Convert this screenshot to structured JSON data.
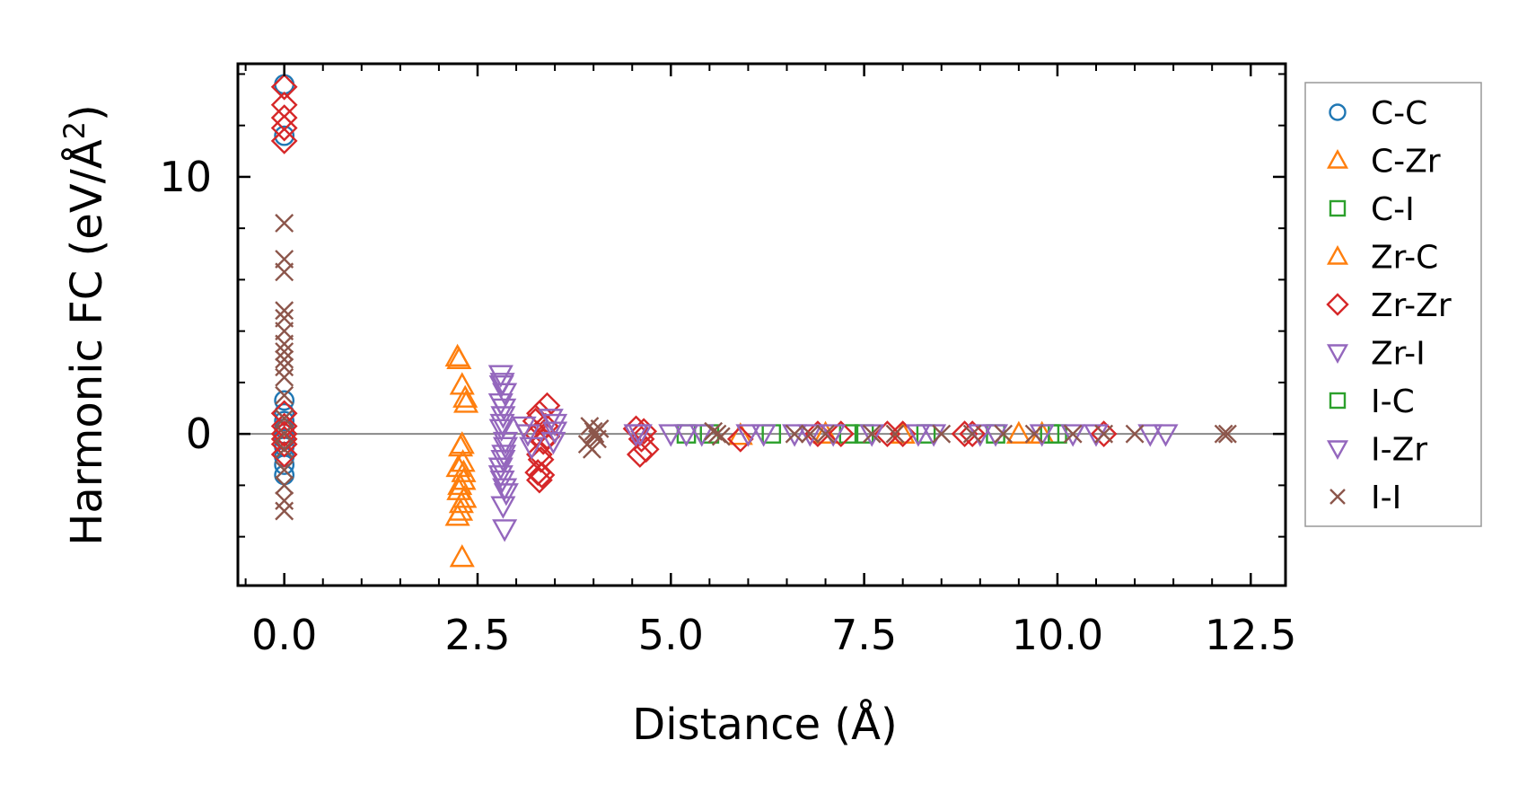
{
  "chart_data": {
    "type": "scatter",
    "title": "",
    "xlabel": "Distance (Å)",
    "ylabel": "Harmonic FC (eV/Å²)",
    "ylabel_main": "Harmonic FC (eV/Å",
    "ylabel_sup": "2",
    "ylabel_tail": ")",
    "xlim": [
      -0.6,
      12.95
    ],
    "ylim": [
      -5.9,
      14.4
    ],
    "xticks": [
      0.0,
      2.5,
      5.0,
      7.5,
      10.0,
      12.5
    ],
    "xtick_labels": [
      "0.0",
      "2.5",
      "5.0",
      "7.5",
      "10.0",
      "12.5"
    ],
    "yticks": [
      0,
      10
    ],
    "ytick_labels": [
      "0",
      "10"
    ],
    "x_minor_step": 0.5,
    "y_minor_step": 2,
    "grid": false,
    "zero_line": true,
    "legend_position": "outside-right",
    "series": [
      {
        "name": "C-C",
        "marker": "circle",
        "color": "#1f77b4",
        "x": [
          0,
          0,
          0,
          0,
          0,
          0,
          0,
          0,
          0,
          0,
          0,
          0
        ],
        "y": [
          13.6,
          11.6,
          1.3,
          0.5,
          0.2,
          0.0,
          -0.2,
          -0.5,
          -1.2,
          -1.6,
          0.8,
          -0.9
        ]
      },
      {
        "name": "C-Zr",
        "marker": "triangle-up",
        "color": "#ff7f0e",
        "x": [
          2.24,
          2.3,
          2.34,
          2.3,
          2.25,
          2.32,
          2.26,
          2.33,
          2.28,
          2.31,
          5.9,
          7.0,
          8.0,
          9.5,
          9.8
        ],
        "y": [
          3.0,
          1.9,
          1.4,
          -0.4,
          -1.3,
          -1.8,
          -2.2,
          -2.5,
          -3.0,
          -1.1,
          -0.05,
          0.0,
          0.0,
          0.0,
          0.0
        ]
      },
      {
        "name": "C-I",
        "marker": "square",
        "color": "#2ca02c",
        "x": [
          5.2,
          6.3,
          7.3,
          8.3,
          9.2,
          10.0
        ],
        "y": [
          0.0,
          0.0,
          0.0,
          0.0,
          0.0,
          0.0
        ]
      },
      {
        "name": "Zr-C",
        "marker": "triangle-up",
        "color": "#ff7f0e",
        "x": [
          2.26,
          2.35,
          2.28,
          2.32,
          2.27,
          2.29,
          2.24,
          2.3
        ],
        "y": [
          2.9,
          1.2,
          -0.5,
          -1.5,
          -2.0,
          -2.7,
          -3.2,
          -4.8
        ]
      },
      {
        "name": "Zr-Zr",
        "marker": "diamond",
        "color": "#d62728",
        "x": [
          0,
          0,
          0,
          0,
          0,
          0,
          0,
          0,
          0,
          0,
          0,
          3.3,
          3.4,
          3.25,
          3.35,
          3.3,
          3.4,
          3.28,
          3.33,
          3.3,
          3.38,
          3.32,
          3.27,
          4.55,
          4.62,
          4.68,
          4.6,
          4.65,
          5.9,
          6.9,
          7.2,
          7.8,
          8.0,
          8.8,
          8.9,
          10.6
        ],
        "y": [
          13.5,
          12.8,
          12.3,
          11.9,
          11.4,
          0.8,
          0.3,
          0.0,
          -0.4,
          -0.8,
          -0.2,
          0.8,
          1.1,
          0.5,
          -0.3,
          -0.8,
          -0.1,
          -1.5,
          -1.6,
          -1.8,
          0.3,
          -1.0,
          0.0,
          0.2,
          -0.2,
          -0.6,
          -0.8,
          0.1,
          -0.2,
          0.0,
          0.0,
          0.0,
          0.0,
          0.0,
          0.0,
          0.0
        ]
      },
      {
        "name": "Zr-I",
        "marker": "triangle-down",
        "color": "#9467bd",
        "x": [
          2.8,
          2.82,
          2.85,
          2.8,
          2.83,
          2.81,
          2.86,
          2.84,
          2.8,
          2.82,
          2.87,
          2.83,
          2.85,
          3.1,
          3.2,
          3.45,
          3.5,
          3.48,
          4.6,
          5.2,
          6.2,
          6.6,
          7.1,
          8.4,
          9.2,
          10.2,
          11.4
        ],
        "y": [
          2.3,
          2.0,
          1.6,
          1.2,
          0.7,
          0.2,
          -0.3,
          -0.8,
          -1.3,
          -1.8,
          -2.3,
          -2.8,
          -3.7,
          0.3,
          -0.5,
          0.6,
          0.1,
          -0.3,
          0.0,
          0.0,
          0.0,
          0.0,
          0.0,
          0.0,
          0.0,
          0.0,
          0.0
        ]
      },
      {
        "name": "I-C",
        "marker": "square",
        "color": "#2ca02c",
        "x": [
          5.5,
          7.5,
          9.9
        ],
        "y": [
          0.0,
          0.0,
          0.0
        ]
      },
      {
        "name": "I-Zr",
        "marker": "triangle-down",
        "color": "#9467bd",
        "x": [
          2.81,
          2.84,
          2.82,
          2.86,
          2.83,
          2.8,
          2.85,
          3.15,
          3.5,
          4.55,
          5.0,
          5.4,
          6.0,
          6.8,
          7.6,
          8.2,
          9.0,
          9.8,
          10.5,
          11.2
        ],
        "y": [
          1.9,
          1.0,
          0.4,
          -0.5,
          -1.0,
          -1.6,
          -2.1,
          0.0,
          0.4,
          0.0,
          0.0,
          0.0,
          0.0,
          0.0,
          0.0,
          0.0,
          0.0,
          0.0,
          0.0,
          0.0
        ]
      },
      {
        "name": "I-I",
        "marker": "x",
        "color": "#8c564b",
        "x": [
          0,
          0,
          0,
          0,
          0,
          0,
          0,
          0,
          0,
          0,
          0,
          0,
          0,
          0,
          0,
          0,
          0,
          0,
          0,
          3.95,
          4.0,
          4.05,
          3.92,
          4.08,
          3.98,
          4.02,
          5.55,
          5.65,
          5.6,
          6.6,
          6.8,
          7.0,
          7.6,
          7.9,
          8.5,
          8.9,
          9.3,
          9.7,
          10.2,
          10.6,
          11.0,
          12.15,
          12.2
        ],
        "y": [
          8.2,
          6.8,
          6.3,
          4.8,
          4.5,
          4.0,
          3.5,
          3.2,
          2.9,
          2.6,
          2.2,
          1.5,
          0.6,
          0.0,
          -0.6,
          -1.4,
          -2.0,
          -2.6,
          -3.0,
          0.3,
          0.1,
          -0.2,
          -0.4,
          0.2,
          -0.6,
          0.0,
          0.1,
          -0.1,
          0.0,
          0.0,
          0.0,
          0.0,
          0.0,
          0.0,
          0.0,
          0.0,
          0.0,
          0.0,
          0.0,
          0.0,
          0.0,
          0.0,
          0.0
        ]
      }
    ]
  }
}
